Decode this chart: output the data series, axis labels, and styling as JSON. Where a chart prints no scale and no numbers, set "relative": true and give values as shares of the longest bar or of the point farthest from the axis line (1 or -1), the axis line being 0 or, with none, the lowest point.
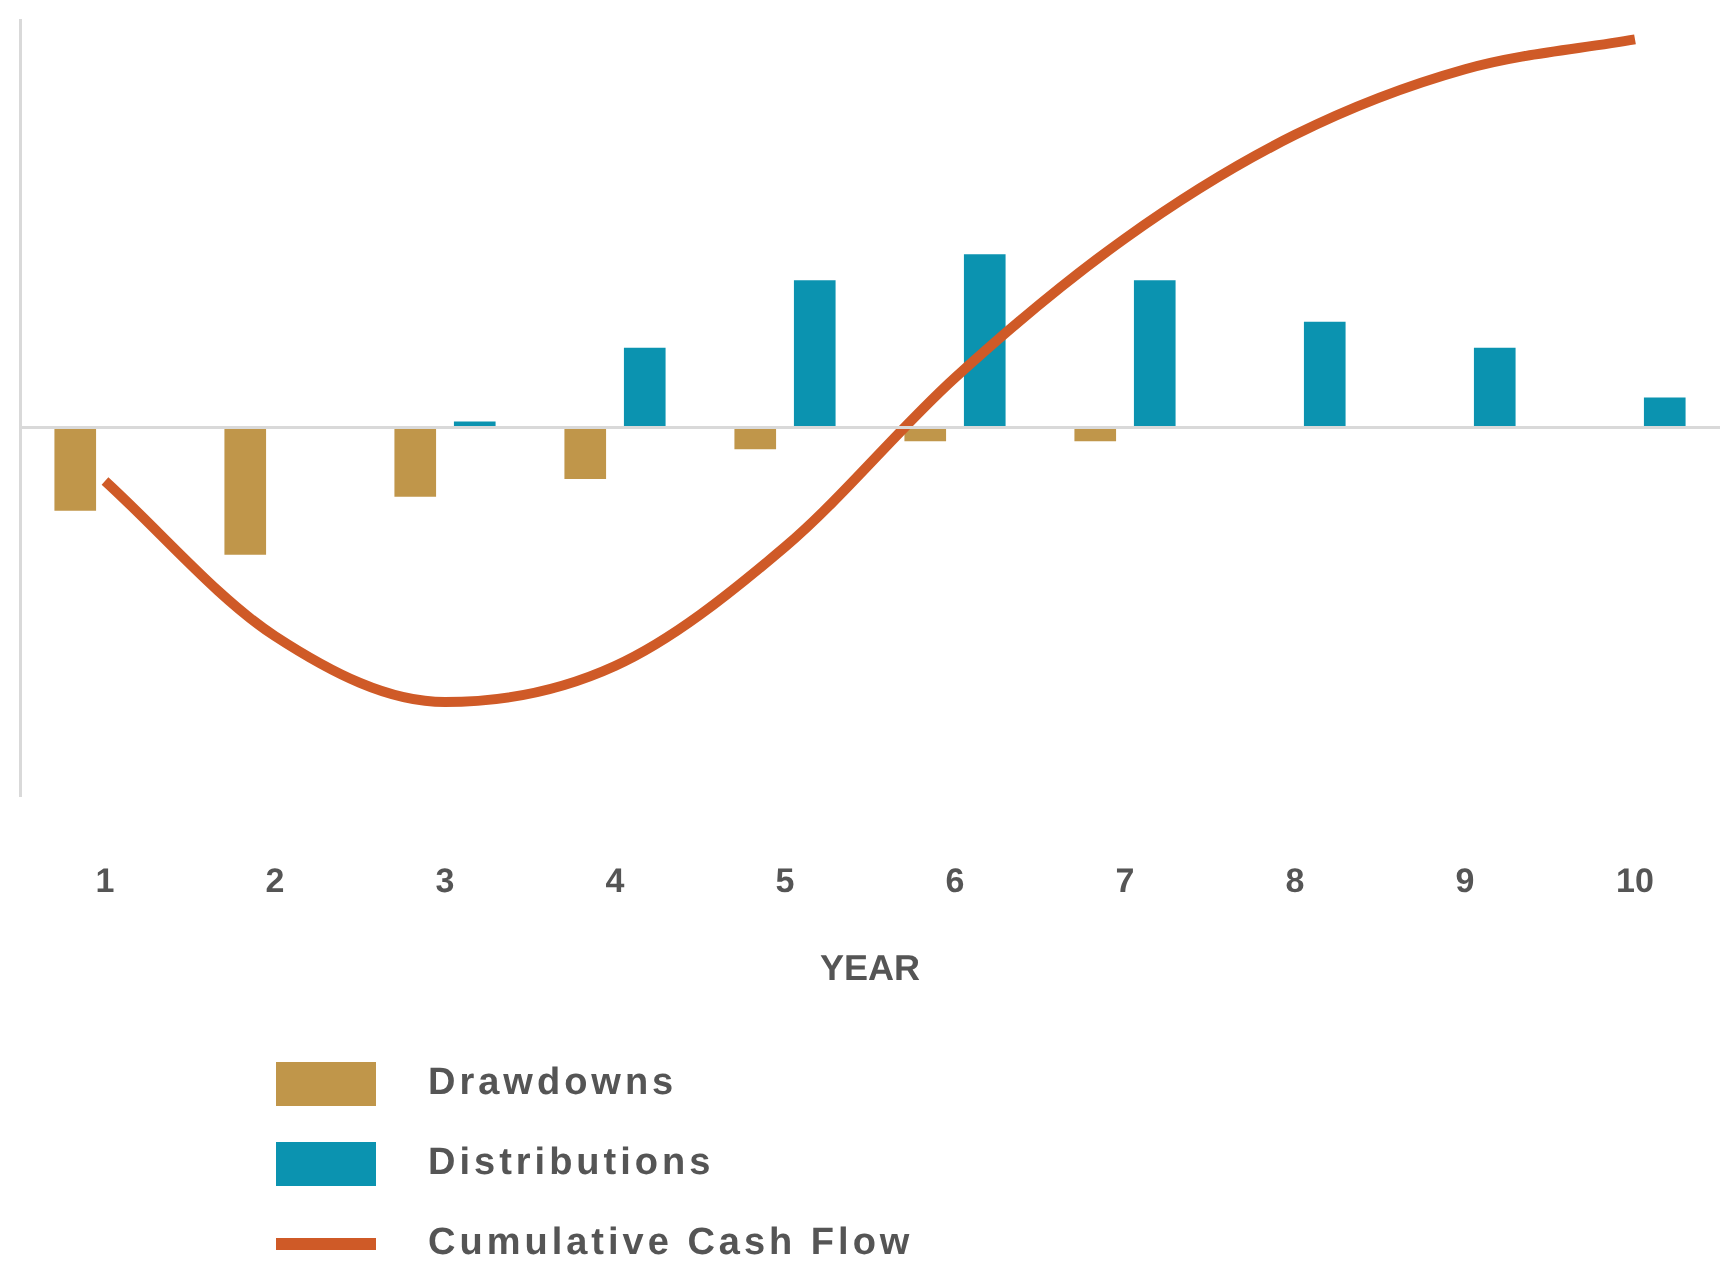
{
  "chart_data": {
    "type": "bar",
    "relative": true,
    "xlabel": "YEAR",
    "categories": [
      "1",
      "2",
      "3",
      "4",
      "5",
      "6",
      "7",
      "8",
      "9",
      "10"
    ],
    "series": [
      {
        "name": "Drawdowns",
        "color": "#c0964a",
        "values": [
          -0.215,
          -0.328,
          -0.179,
          -0.133,
          -0.056,
          -0.036,
          -0.036,
          null,
          null,
          null
        ]
      },
      {
        "name": "Distributions",
        "color": "#0b93b0",
        "values": [
          null,
          null,
          0.015,
          0.205,
          0.379,
          0.446,
          0.379,
          0.272,
          0.205,
          0.077
        ]
      },
      {
        "name": "Cumulative Cash Flow",
        "type": "line",
        "color": "#cf5a27",
        "values": [
          -0.138,
          -0.538,
          -0.708,
          -0.615,
          -0.308,
          0.128,
          0.487,
          0.754,
          0.923,
          1
        ]
      }
    ],
    "legend": "bottom",
    "grid": false,
    "marker": "none"
  }
}
